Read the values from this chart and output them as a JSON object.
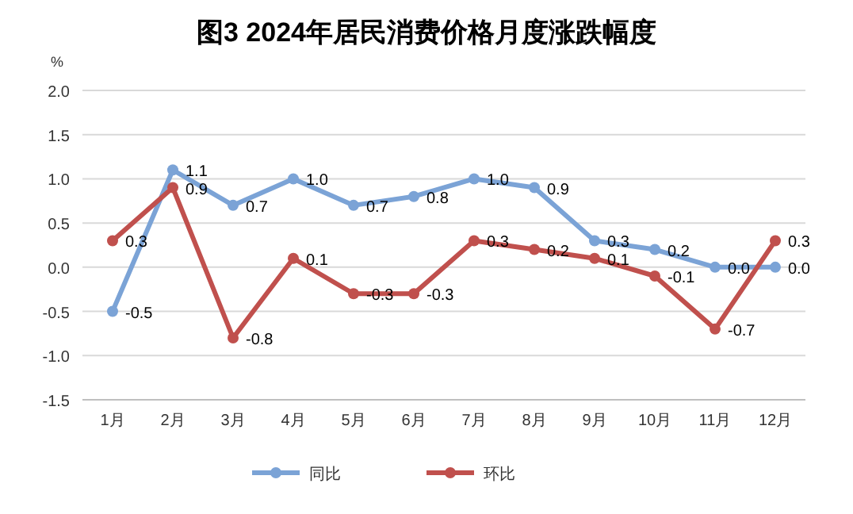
{
  "chart_data": {
    "type": "line",
    "title": "图3  2024年居民消费价格月度涨跌幅度",
    "ylabel": "%",
    "categories": [
      "1月",
      "2月",
      "3月",
      "4月",
      "5月",
      "6月",
      "7月",
      "8月",
      "9月",
      "10月",
      "11月",
      "12月"
    ],
    "series": [
      {
        "name": "同比",
        "color": "#7ba3d6",
        "values": [
          -0.5,
          1.1,
          0.7,
          1.0,
          0.7,
          0.8,
          1.0,
          0.9,
          0.3,
          0.2,
          0.0,
          0.0
        ],
        "value_labels": [
          "-0.5",
          "1.1",
          "0.7",
          "1.0",
          "0.7",
          "0.8",
          "1.0",
          "0.9",
          "0.3",
          "0.2",
          "0.0",
          "0.0"
        ]
      },
      {
        "name": "环比",
        "color": "#c0504d",
        "values": [
          0.3,
          0.9,
          -0.8,
          0.1,
          -0.3,
          -0.3,
          0.3,
          0.2,
          0.1,
          -0.1,
          -0.7,
          0.3
        ],
        "value_labels": [
          "0.3",
          "0.9",
          "-0.8",
          "0.1",
          "-0.3",
          "-0.3",
          "0.3",
          "0.2",
          "0.1",
          "-0.1",
          "-0.7",
          "0.3"
        ]
      }
    ],
    "ylim": [
      -1.5,
      2.0
    ],
    "yticks": [
      {
        "value": -1.5,
        "label": "-1.5"
      },
      {
        "value": -1.0,
        "label": "-1.0"
      },
      {
        "value": -0.5,
        "label": "-0.5"
      },
      {
        "value": 0,
        "label": "0.0"
      },
      {
        "value": 0.5,
        "label": "0.5"
      },
      {
        "value": 1.0,
        "label": "1.0"
      },
      {
        "value": 1.5,
        "label": "1.5"
      },
      {
        "value": 2.0,
        "label": "2.0"
      }
    ],
    "grid": "y",
    "legend": "bottom",
    "marker": "circle",
    "line_style": "solid"
  }
}
